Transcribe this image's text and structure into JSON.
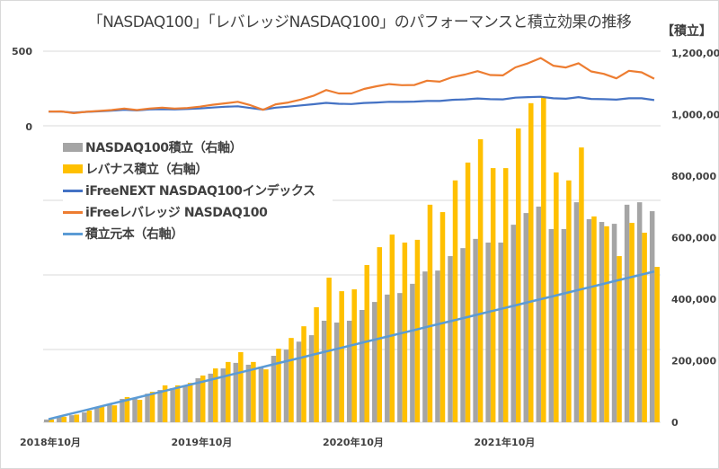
{
  "title": "「NASDAQ100」「レバレッジNASDAQ100」のパフォーマンスと積立効果の推移",
  "unit_label": "【積立】",
  "colors": {
    "nasdaq_bar": "#a5a5a5",
    "leverage_bar": "#ffc000",
    "nasdaq_line": "#4472c4",
    "leverage_line": "#ed7d31",
    "principal_line": "#5b9bd5",
    "grid": "#d9d9d9"
  },
  "legend": [
    {
      "label": "NASDAQ100積立（右軸）",
      "type": "box",
      "color_key": "nasdaq_bar"
    },
    {
      "label": "レバナス積立（右軸）",
      "type": "box",
      "color_key": "leverage_bar"
    },
    {
      "label": "iFreeNEXT NASDAQ100インデックス",
      "type": "line",
      "color_key": "nasdaq_line"
    },
    {
      "label": "iFreeレバレッジ NASDAQ100",
      "type": "line",
      "color_key": "leverage_line"
    },
    {
      "label": "積立元本（右軸）",
      "type": "line",
      "color_key": "principal_line"
    }
  ],
  "chart_data": {
    "type": "bar",
    "title": "「NASDAQ100」「レバレッジNASDAQ100」のパフォーマンスと積立効果の推移",
    "xlabel": "",
    "ylabel_left": "",
    "ylabel_right": "【積立】",
    "left_axis": {
      "ylim": [
        0,
        500
      ],
      "ticks": [
        0,
        500
      ],
      "tick_labels": [
        "0",
        "500"
      ]
    },
    "right_axis": {
      "ylim": [
        0,
        1200000
      ],
      "ticks": [
        0,
        200000,
        400000,
        600000,
        800000,
        1000000,
        1200000
      ],
      "tick_labels": [
        "0",
        "200,000",
        "400,000",
        "600,000",
        "800,000",
        "1,000,000",
        "1,200,000"
      ]
    },
    "x_tick_labels": [
      {
        "index": 0,
        "label": "2018年10月"
      },
      {
        "index": 12,
        "label": "2019年10月"
      },
      {
        "index": 24,
        "label": "2020年10月"
      },
      {
        "index": 36,
        "label": "2021年10月"
      }
    ],
    "categories": [
      "2018-10",
      "2018-11",
      "2018-12",
      "2019-01",
      "2019-02",
      "2019-03",
      "2019-04",
      "2019-05",
      "2019-06",
      "2019-07",
      "2019-08",
      "2019-09",
      "2019-10",
      "2019-11",
      "2019-12",
      "2020-01",
      "2020-02",
      "2020-03",
      "2020-04",
      "2020-05",
      "2020-06",
      "2020-07",
      "2020-08",
      "2020-09",
      "2020-10",
      "2020-11",
      "2020-12",
      "2021-01",
      "2021-02",
      "2021-03",
      "2021-04",
      "2021-05",
      "2021-06",
      "2021-07",
      "2021-08",
      "2021-09",
      "2021-10",
      "2021-11",
      "2021-12",
      "2022-01",
      "2022-02",
      "2022-03",
      "2022-04",
      "2022-05",
      "2022-06",
      "2022-07",
      "2022-08",
      "2022-09",
      "2022-10"
    ],
    "grid": true,
    "legend_position": "upper-left",
    "series": [
      {
        "name": "NASDAQ100積立（右軸）",
        "type": "bar",
        "axis": "right",
        "values": [
          9000,
          19000,
          23000,
          32000,
          49000,
          58000,
          76000,
          76000,
          93000,
          105000,
          111000,
          120000,
          143000,
          158000,
          175000,
          193000,
          187000,
          181000,
          216000,
          236000,
          262000,
          283000,
          330000,
          324000,
          330000,
          365000,
          391000,
          415000,
          420000,
          450000,
          490000,
          493000,
          540000,
          566000,
          596000,
          584000,
          584000,
          642000,
          680000,
          701000,
          628000,
          628000,
          715000,
          660000,
          651000,
          645000,
          707000,
          715000,
          686000
        ]
      },
      {
        "name": "レバナス積立（右軸）",
        "type": "bar",
        "axis": "right",
        "values": [
          9000,
          18000,
          25000,
          38000,
          50000,
          55000,
          82000,
          73000,
          99000,
          120000,
          120000,
          128000,
          152000,
          175000,
          196000,
          228000,
          196000,
          172000,
          239000,
          274000,
          312000,
          374000,
          470000,
          426000,
          432000,
          511000,
          569000,
          610000,
          584000,
          593000,
          707000,
          683000,
          786000,
          844000,
          920000,
          826000,
          826000,
          955000,
          1037000,
          1057000,
          812000,
          786000,
          893000,
          669000,
          637000,
          540000,
          648000,
          616000,
          505000
        ]
      },
      {
        "name": "iFreeNEXT NASDAQ100インデックス",
        "type": "line",
        "axis": "left",
        "values": [
          100,
          100,
          93,
          98,
          102,
          106,
          112,
          108,
          114,
          116,
          114,
          117,
          121,
          127,
          132,
          135,
          124,
          113,
          126,
          133,
          141,
          149,
          158,
          152,
          150,
          157,
          160,
          165,
          164,
          166,
          170,
          170,
          178,
          181,
          187,
          182,
          181,
          192,
          196,
          198,
          188,
          185,
          196,
          184,
          182,
          179,
          188,
          188,
          176
        ]
      },
      {
        "name": "iFreeレバレッジ NASDAQ100",
        "type": "line",
        "axis": "left",
        "values": [
          100,
          101,
          90,
          99,
          104,
          110,
          120,
          110,
          120,
          126,
          120,
          124,
          133,
          145,
          155,
          165,
          142,
          112,
          148,
          160,
          180,
          205,
          243,
          220,
          220,
          250,
          268,
          282,
          275,
          276,
          305,
          298,
          328,
          345,
          368,
          342,
          340,
          393,
          420,
          455,
          404,
          392,
          420,
          366,
          350,
          320,
          370,
          360,
          318
        ]
      },
      {
        "name": "積立元本（右軸）",
        "type": "line",
        "axis": "right",
        "values": [
          10000,
          20000,
          30000,
          40000,
          50000,
          60000,
          70000,
          80000,
          90000,
          100000,
          110000,
          120000,
          130000,
          140000,
          150000,
          160000,
          170000,
          180000,
          190000,
          200000,
          210000,
          220000,
          230000,
          240000,
          250000,
          260000,
          270000,
          280000,
          290000,
          300000,
          310000,
          320000,
          330000,
          340000,
          350000,
          360000,
          370000,
          380000,
          390000,
          400000,
          410000,
          420000,
          430000,
          440000,
          450000,
          460000,
          470000,
          480000,
          490000
        ]
      }
    ]
  }
}
